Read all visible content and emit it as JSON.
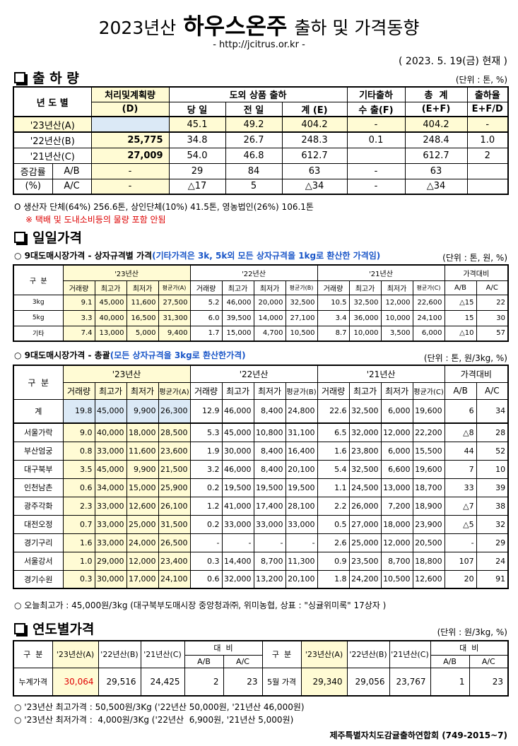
{
  "header": {
    "title_year": "2023년산",
    "title_main": "하우스온주",
    "title_rest": "출하 및 가격동향",
    "url": "- http://jcitrus.or.kr -",
    "date": "( 2023. 5. 19(금) 현재 )"
  },
  "shipment": {
    "heading": "출 하 량",
    "unit": "(단위 : 톤, %)",
    "table": {
      "header": [
        [
          "년 도 별",
          "처리및계획량",
          "도외 상품 출하",
          "기타출하",
          "총  계",
          "출하율"
        ],
        [
          "(D)",
          "당 일",
          "전 일",
          "계 (E)",
          "수 출(F)",
          "(E+F)",
          "E+F/D"
        ]
      ],
      "rows": [
        [
          "'23년산(A)",
          null,
          "45.1",
          "49.2",
          "404.2",
          "-",
          "404.2",
          "-"
        ],
        [
          "'22년산(B)",
          "25,775",
          "34.8",
          "26.7",
          "248.3",
          "0.1",
          "248.4",
          "1.0"
        ],
        [
          "'21년산(C)",
          "27,009",
          "54.0",
          "46.8",
          "612.7",
          null,
          "612.7",
          "2"
        ],
        [
          "증감률",
          "A/B",
          "-",
          "29",
          "84",
          "63",
          "-",
          "63",
          null
        ],
        [
          "(%)",
          "A/C",
          "-",
          "△17",
          "5",
          "△34",
          "-",
          "△34",
          null
        ]
      ]
    },
    "notes": [
      "O 생산자 단체(64%) 256.6톤, 상인단체(10%) 41.5톤, 영농법인(26%) 106.1톤",
      "※ 택배 및 도내소비등의 물량 포함 안됨"
    ]
  },
  "daily": {
    "heading": "일일가격",
    "by_box": {
      "title": "○ 9대도매시장가격 - 상자규격별 가격",
      "title_note": "(기타가격은 3k, 5k외 모든 상자규격을 1kg로 환산한 가격임)",
      "unit": "(단위 : 톤, 원, %)",
      "table": {
        "header": [
          [
            "구  분",
            "'23년산",
            "'22년산",
            "'21년산",
            "가격대비"
          ],
          [
            "거래량",
            "최고가",
            "최저가",
            "평균가(A)",
            "거래량",
            "최고가",
            "최저가",
            "평균가(B)",
            "거래량",
            "최고가",
            "최저가",
            "평균가(C)",
            "A/B",
            "A/C"
          ]
        ],
        "rows": [
          [
            "3kg",
            "9.1",
            "45,000",
            "11,600",
            "27,500",
            "5.2",
            "46,000",
            "20,000",
            "32,500",
            "10.5",
            "32,500",
            "12,000",
            "22,600",
            "△15",
            "22"
          ],
          [
            "5kg",
            "3.3",
            "40,000",
            "16,500",
            "31,300",
            "6.0",
            "39,500",
            "14,000",
            "27,100",
            "3.4",
            "36,000",
            "10,000",
            "24,100",
            "15",
            "30"
          ],
          [
            "기타",
            "7.4",
            "13,000",
            "5,000",
            "9,400",
            "1.7",
            "15,000",
            "4,700",
            "10,500",
            "8.7",
            "10,000",
            "3,500",
            "6,000",
            "△10",
            "57"
          ]
        ]
      }
    },
    "summary": {
      "title": "○ 9대도매시장가격 - 총괄",
      "title_note": "(모든 상자규격을 3kg로 환산한가격)",
      "unit": "(단위 : 톤, 원/3kg, %)",
      "table": {
        "header": [
          [
            "구  분",
            "'23년산",
            "'22년산",
            "'21년산",
            "가격대비"
          ],
          [
            "거래량",
            "최고가",
            "최저가",
            "평균가(A)",
            "거래량",
            "최고가",
            "최저가",
            "평균가(B)",
            "거래량",
            "최고가",
            "최저가",
            "평균가(C)",
            "A/B",
            "A/C"
          ]
        ],
        "rows": [
          [
            "계",
            "19.8",
            "45,000",
            "9,900",
            "26,300",
            "12.9",
            "46,000",
            "8,400",
            "24,800",
            "22.6",
            "32,500",
            "6,000",
            "19,600",
            "6",
            "34"
          ],
          [
            "서울가락",
            "9.0",
            "40,000",
            "18,000",
            "28,500",
            "5.3",
            "45,000",
            "10,800",
            "31,100",
            "6.5",
            "32,000",
            "12,000",
            "22,200",
            "△8",
            "28"
          ],
          [
            "부산엄궁",
            "0.8",
            "33,000",
            "11,600",
            "23,600",
            "1.9",
            "30,000",
            "8,400",
            "16,400",
            "1.6",
            "23,800",
            "6,000",
            "15,500",
            "44",
            "52"
          ],
          [
            "대구북부",
            "3.5",
            "45,000",
            "9,900",
            "21,500",
            "3.2",
            "46,000",
            "8,400",
            "20,100",
            "5.4",
            "32,500",
            "6,600",
            "19,600",
            "7",
            "10"
          ],
          [
            "인천남촌",
            "0.6",
            "34,000",
            "15,000",
            "25,900",
            "0.2",
            "19,500",
            "19,500",
            "19,500",
            "1.1",
            "24,500",
            "13,000",
            "18,700",
            "33",
            "39"
          ],
          [
            "광주각화",
            "2.3",
            "33,000",
            "12,600",
            "26,100",
            "1.2",
            "41,000",
            "17,400",
            "28,100",
            "2.2",
            "26,000",
            "7,200",
            "18,900",
            "△7",
            "38"
          ],
          [
            "대전오정",
            "0.7",
            "33,000",
            "25,000",
            "31,500",
            "0.2",
            "33,000",
            "33,000",
            "33,000",
            "0.5",
            "27,000",
            "18,000",
            "23,900",
            "△5",
            "32"
          ],
          [
            "경기구리",
            "1.6",
            "33,000",
            "24,000",
            "26,500",
            "-",
            "-",
            "-",
            "-",
            "2.6",
            "25,000",
            "12,000",
            "20,500",
            "-",
            "29"
          ],
          [
            "서울강서",
            "1.0",
            "29,000",
            "12,000",
            "23,400",
            "0.3",
            "14,400",
            "8,700",
            "11,300",
            "0.9",
            "23,500",
            "8,700",
            "18,800",
            "107",
            "24"
          ],
          [
            "경기수원",
            "0.3",
            "30,000",
            "17,000",
            "24,100",
            "0.6",
            "32,000",
            "13,200",
            "20,100",
            "1.8",
            "24,200",
            "10,500",
            "12,600",
            "20",
            "91"
          ]
        ]
      }
    },
    "note": "○ 오늘최고가 : 45,000원/3kg (대구북부도매시장 중앙청과㈜, 위미농협, 상표 : \"싱귤위미록\" 17상자 )"
  },
  "yearly": {
    "heading": "연도별가격",
    "unit": "(단위 : 원/3kg, %)",
    "table": {
      "header": [
        [
          "구  분",
          "'23년산(A)",
          "'22년산(B)",
          "'21년산(C)",
          "대  비",
          "구  분",
          "'23년산(A)",
          "'22년산(B)",
          "'21년산(C)",
          "대  비"
        ],
        [
          "A/B",
          "A/C",
          "A/B",
          "A/C"
        ]
      ],
      "rows": [
        [
          "누계가격",
          "30,064",
          "29,516",
          "24,425",
          "2",
          "23",
          "5월 가격",
          "29,340",
          "29,056",
          "23,767",
          "1",
          "23"
        ]
      ]
    },
    "notes": [
      "○ '23년산 최고가격 : 50,500원/3Kg ('22년산 50,000원, '21년산 46,000원)",
      "○ '23년산 최저가격 :  4,000원/3Kg ('22년산  6,900원, '21년산 5,000원)"
    ]
  },
  "footer": "제주특별자치도감귤출하연합회 (749-2015~7)"
}
